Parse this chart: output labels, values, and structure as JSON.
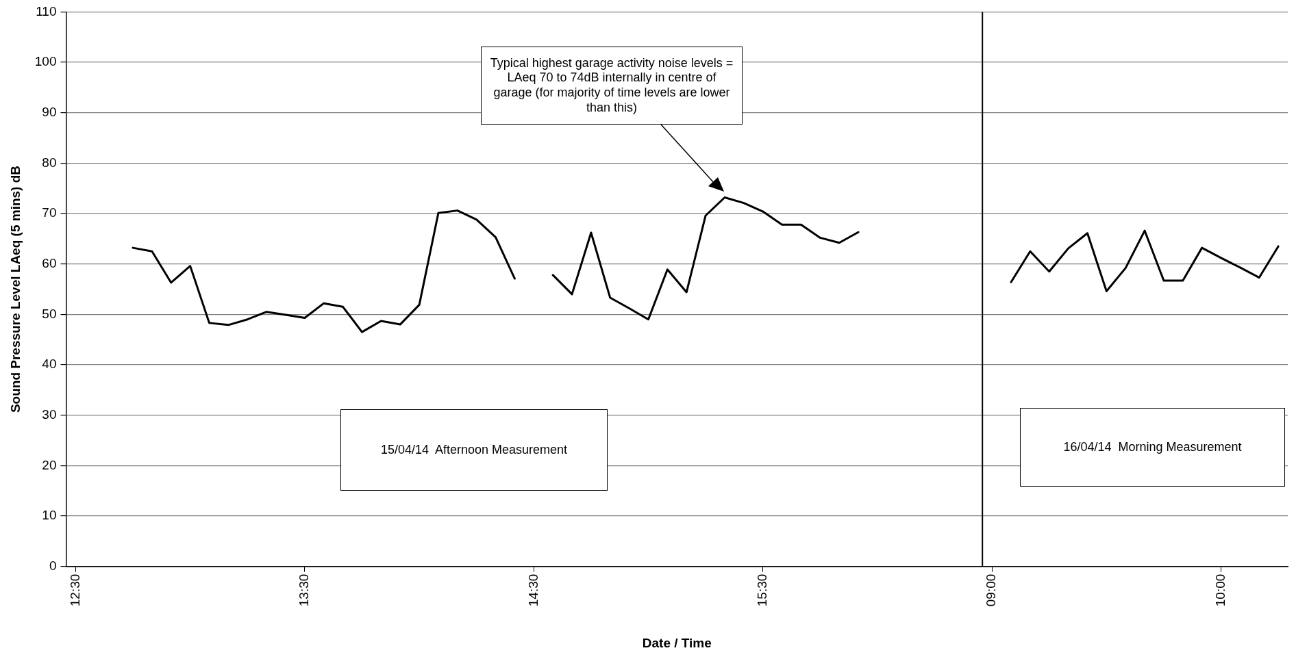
{
  "chart_data": {
    "type": "line",
    "xlabel": "Date / Time",
    "ylabel": "Sound Pressure Level LAeq (5 mins) dB",
    "categories": [
      "12:30",
      null,
      null,
      null,
      null,
      null,
      null,
      null,
      null,
      null,
      null,
      null,
      "13:30",
      null,
      null,
      null,
      null,
      null,
      null,
      null,
      null,
      null,
      null,
      null,
      "14:30",
      null,
      null,
      null,
      null,
      null,
      null,
      null,
      null,
      null,
      null,
      null,
      "15:30",
      null,
      null,
      null,
      null,
      null,
      null,
      null,
      null,
      null,
      null,
      null,
      "09:00",
      null,
      null,
      null,
      null,
      null,
      null,
      null,
      null,
      null,
      null,
      null,
      "10:00",
      null,
      null,
      null
    ],
    "series": [
      {
        "color": "#000000",
        "values": [
          null,
          null,
          null,
          63.2,
          62.5,
          56.3,
          59.6,
          48.3,
          47.9,
          49.0,
          50.5,
          49.9,
          49.3,
          52.2,
          51.5,
          46.5,
          48.7,
          48.0,
          51.9,
          70.1,
          70.6,
          68.8,
          65.3,
          57.1,
          null,
          57.8,
          54.0,
          66.2,
          53.3,
          51.2,
          49.0,
          58.9,
          54.4,
          69.6,
          73.2,
          72.1,
          70.4,
          67.8,
          67.8,
          65.2,
          64.2,
          66.3,
          null,
          null,
          null,
          null,
          null,
          null,
          null,
          56.4,
          62.5,
          58.5,
          63.1,
          66.1,
          54.6,
          59.2,
          66.6,
          56.7,
          56.7,
          63.2,
          61.2,
          59.3,
          57.3,
          63.5
        ]
      }
    ],
    "ylim": [
      0,
      110
    ],
    "yticks": [
      0,
      10,
      20,
      30,
      40,
      50,
      60,
      70,
      80,
      90,
      100,
      110
    ],
    "grid": "y",
    "legend": false,
    "marker": "none",
    "line_style": "solid",
    "ref_lines": [
      {
        "axis": "x",
        "value": "09:00",
        "color": "#000000"
      }
    ],
    "annotations": [
      "Typical highest garage activity noise levels = LAeq 70 to 74dB internally in centre of garage (for majority of time levels are lower than this)",
      "15/04/14  Afternoon Measurement",
      "16/04/14  Morning Measurement"
    ]
  }
}
